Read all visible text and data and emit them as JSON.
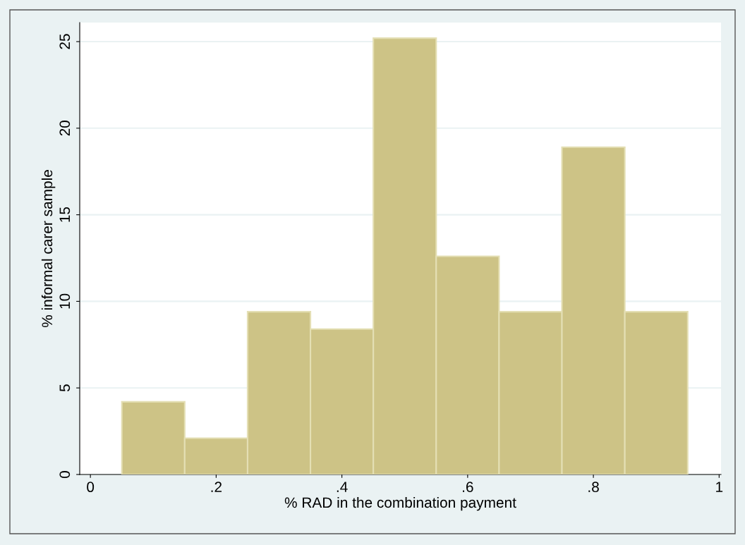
{
  "chart_data": {
    "type": "histogram",
    "xlabel": "% RAD in the combination payment",
    "ylabel": "% informal carer sample",
    "bins": [
      0.05,
      0.15,
      0.25,
      0.35,
      0.45,
      0.55,
      0.65,
      0.75,
      0.85,
      0.95
    ],
    "values": [
      4.2,
      2.1,
      9.4,
      8.4,
      25.2,
      12.6,
      9.4,
      18.9,
      9.4
    ],
    "color": "#cdc386",
    "xlim": [
      -0.017,
      1.003
    ],
    "ylim": [
      0,
      26.1
    ],
    "xticks": [
      0,
      {
        "value": 0.2,
        "label": ".2"
      },
      {
        "value": 0.4,
        "label": ".4"
      },
      {
        "value": 0.6,
        "label": ".6"
      },
      {
        "value": 0.8,
        "label": ".8"
      },
      1
    ],
    "yticks": [
      0,
      5,
      10,
      15,
      20,
      25
    ],
    "grid": "y"
  }
}
